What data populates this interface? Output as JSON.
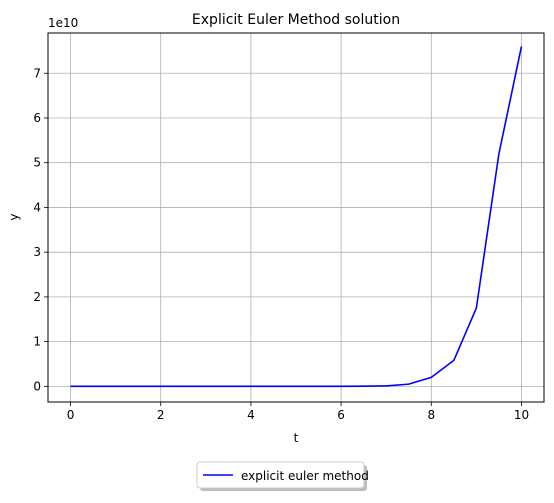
{
  "chart_data": {
    "type": "line",
    "title": "Explicit Euler Method solution",
    "xlabel": "t",
    "ylabel": "y",
    "y_offset_text": "1e10",
    "xlim": [
      -0.5,
      10.5
    ],
    "ylim": [
      -0.35,
      7.9
    ],
    "y_scale_multiplier": 10000000000.0,
    "grid": true,
    "legend_position": "below chart, centered",
    "x_ticks": [
      0,
      2,
      4,
      6,
      8,
      10
    ],
    "x_tick_labels": [
      "0",
      "2",
      "4",
      "6",
      "8",
      "10"
    ],
    "y_ticks": [
      0,
      1,
      2,
      3,
      4,
      5,
      6,
      7
    ],
    "y_tick_labels": [
      "0",
      "1",
      "2",
      "3",
      "4",
      "5",
      "6",
      "7"
    ],
    "series": [
      {
        "name": "explicit euler method",
        "color": "#0000ff",
        "x": [
          0,
          0.5,
          1,
          1.5,
          2,
          2.5,
          3,
          3.5,
          4,
          4.5,
          5,
          5.5,
          6,
          6.5,
          7,
          7.5,
          8,
          8.5,
          9,
          9.5,
          10
        ],
        "y": [
          0,
          0,
          0,
          0,
          0,
          0,
          0,
          0,
          0,
          0,
          0.0001,
          0.0003,
          0.001,
          0.003,
          0.01,
          0.05,
          0.2,
          0.58,
          1.75,
          5.2,
          7.6
        ]
      }
    ]
  }
}
